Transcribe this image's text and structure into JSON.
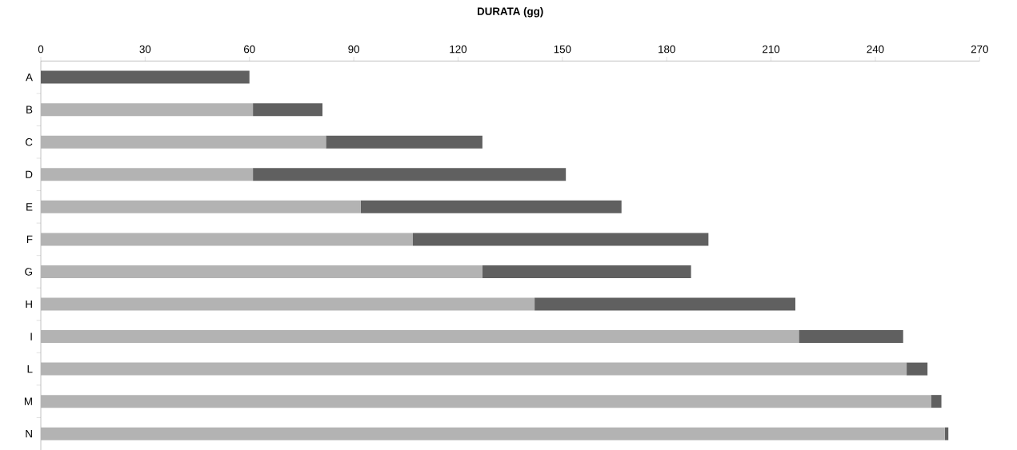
{
  "chart_data": {
    "type": "bar",
    "orientation": "horizontal",
    "stacked": true,
    "title": "DURATA (gg)",
    "categories": [
      "A",
      "B",
      "C",
      "D",
      "E",
      "F",
      "G",
      "H",
      "I",
      "L",
      "M",
      "N"
    ],
    "series": [
      {
        "color": "#b3b3b3",
        "values": [
          0,
          61,
          82,
          61,
          92,
          107,
          127,
          142,
          218,
          249,
          256,
          260
        ]
      },
      {
        "color": "#606060",
        "values": [
          60,
          20,
          45,
          90,
          75,
          85,
          60,
          75,
          30,
          6,
          3,
          1
        ]
      }
    ],
    "xlim": [
      0,
      270
    ],
    "xticks": [
      0,
      30,
      60,
      90,
      120,
      150,
      180,
      210,
      240,
      270
    ]
  }
}
